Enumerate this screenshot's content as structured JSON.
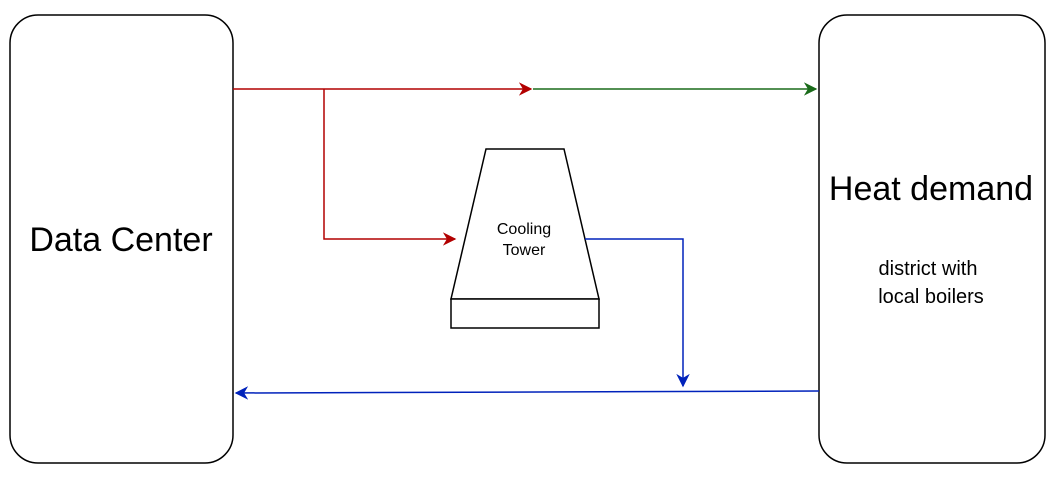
{
  "nodes": {
    "data_center": {
      "label": "Data Center"
    },
    "heat_demand": {
      "label": "Heat demand",
      "sublabel_line1": "district with",
      "sublabel_line2": "local boilers"
    },
    "cooling_tower": {
      "label_line1": "Cooling",
      "label_line2": "Tower"
    }
  },
  "colors": {
    "hot": "#b20000",
    "delivered": "#1a6b1a",
    "cold": "#0022bb",
    "outline": "#000000"
  }
}
